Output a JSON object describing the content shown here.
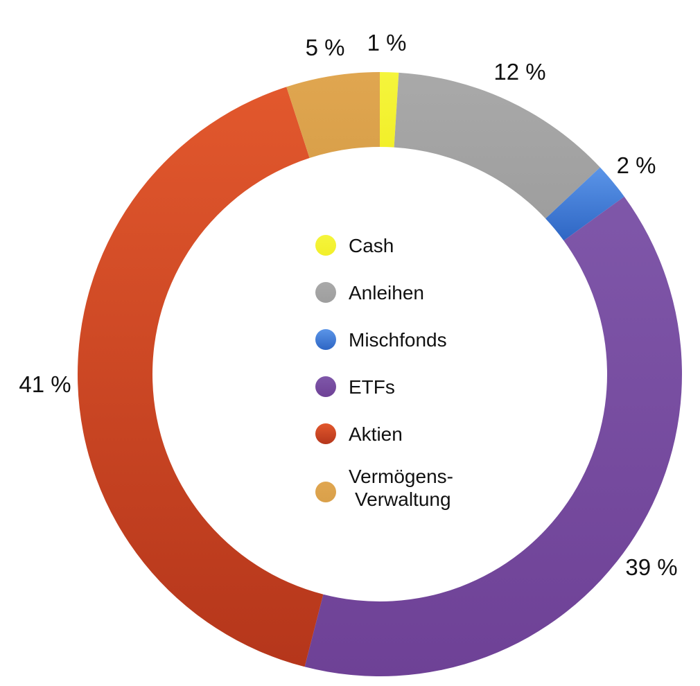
{
  "chart_data": {
    "type": "pie",
    "donut": true,
    "title": "",
    "legend_position": "center",
    "slices": [
      {
        "label": "Cash",
        "legend_lines": [
          "Cash"
        ],
        "value": 1,
        "value_label": "1 %",
        "color": "#f5f53c",
        "color_dark": "#f2ef2a"
      },
      {
        "label": "Anleihen",
        "legend_lines": [
          "Anleihen"
        ],
        "value": 12,
        "value_label": "12 %",
        "color": "#a9a9a9",
        "color_dark": "#9e9e9e"
      },
      {
        "label": "Mischfonds",
        "legend_lines": [
          "Mischfonds"
        ],
        "value": 2,
        "value_label": "2 %",
        "color": "#5b95e8",
        "color_dark": "#2e66c4"
      },
      {
        "label": "ETFs",
        "legend_lines": [
          "ETFs"
        ],
        "value": 39,
        "value_label": "39 %",
        "color": "#7f57a9",
        "color_dark": "#6e4196"
      },
      {
        "label": "Aktien",
        "legend_lines": [
          "Aktien"
        ],
        "value": 41,
        "value_label": "41 %",
        "color": "#e2582d",
        "color_dark": "#b5361b"
      },
      {
        "label": "Vermögens-Verwaltung",
        "legend_lines": [
          "Vermögens-",
          "Verwaltung"
        ],
        "value": 5,
        "value_label": "5 %",
        "color": "#e0a650",
        "color_dark": "#d9a04a"
      }
    ]
  }
}
